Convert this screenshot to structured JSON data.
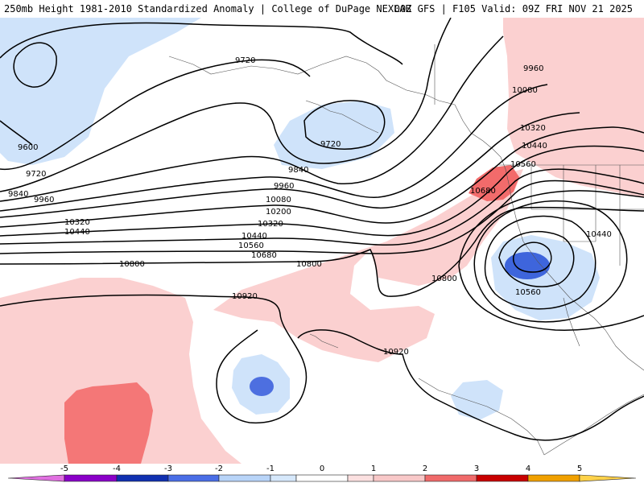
{
  "header": {
    "title_left": "250mb Height 1981-2010 Standardized Anomaly | College of DuPage NEXLAB",
    "title_right": "00Z GFS | F105 Valid: 09Z FRI NOV 21 2025"
  },
  "contour_labels": {
    "l9720_a": "9720",
    "l9720_b": "9720",
    "l9720_c": "9720",
    "l9600": "9600",
    "l9840_a": "9840",
    "l9840_b": "9840",
    "l9960_a": "9960",
    "l9960_b": "9960",
    "l9960_c": "9960",
    "l10080_a": "10080",
    "l10080_b": "10080",
    "l10200": "10200",
    "l10320_a": "10320",
    "l10320_b": "10320",
    "l10320_c": "10320",
    "l10440_a": "10440",
    "l10440_b": "10440",
    "l10440_c": "10440",
    "l10440_d": "10440",
    "l10560_a": "10560",
    "l10560_b": "10560",
    "l10560_c": "10560",
    "l10680_a": "10680",
    "l10680_b": "10680",
    "l10800_a": "10800",
    "l10800_b": "10800",
    "l10800_c": "10800",
    "l10920_a": "10920",
    "l10920_b": "10920"
  },
  "colorbar": {
    "ticks": [
      "-5",
      "-4",
      "-3",
      "-2",
      "-1",
      "0",
      "1",
      "2",
      "3",
      "4",
      "5"
    ],
    "colors": {
      "neg5": "#e070e0",
      "neg4": "#8a00c8",
      "neg3": "#1030b0",
      "neg2": "#4a6ee6",
      "neg1": "#b8d4f8",
      "neg05": "#d6e8fb",
      "zero": "#ffffff",
      "pos05": "#fbe0e0",
      "pos1": "#f8c8c8",
      "pos2": "#f06a6a",
      "pos3": "#c80000",
      "pos4": "#f0a000",
      "pos5": "#ffd24a"
    }
  }
}
